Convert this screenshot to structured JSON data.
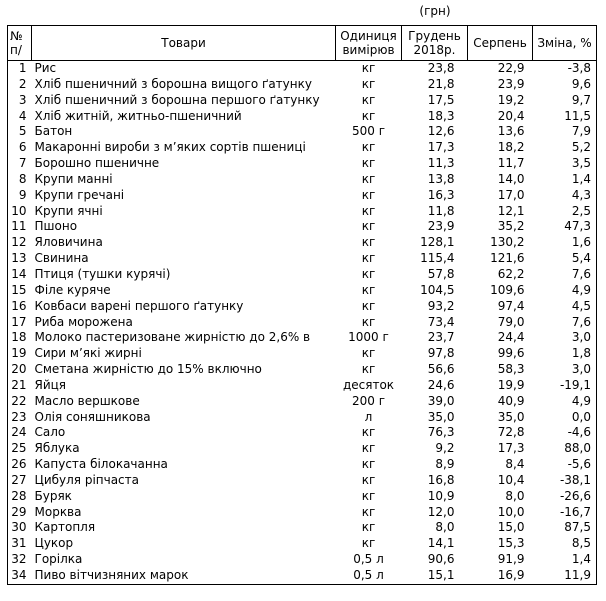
{
  "currency_note": "(грн)",
  "colors": {
    "text": "#000000",
    "border": "#000000",
    "background": "#ffffff"
  },
  "table": {
    "header": {
      "num_lines": [
        "№",
        "п/"
      ],
      "goods": "Товари",
      "unit_lines": [
        "Одиниця",
        "вимірюв"
      ],
      "dec_lines": [
        "Грудень",
        "2018р."
      ],
      "august": "Серпень",
      "change": "Зміна, %"
    },
    "rows": [
      {
        "num": "1",
        "name": "Рис",
        "unit": "кг",
        "dec": "23,8",
        "aug": "22,9",
        "change": "-3,8"
      },
      {
        "num": "2",
        "name": "Хліб пшеничний з борошна вищого ґатунку",
        "unit": "кг",
        "dec": "21,8",
        "aug": "23,9",
        "change": "9,6"
      },
      {
        "num": "3",
        "name": "Хліб пшеничний з борошна першого ґатунку",
        "unit": "кг",
        "dec": "17,5",
        "aug": "19,2",
        "change": "9,7"
      },
      {
        "num": "4",
        "name": "Хліб житній, житньо-пшеничний",
        "unit": "кг",
        "dec": "18,3",
        "aug": "20,4",
        "change": "11,5"
      },
      {
        "num": "5",
        "name": "Батон",
        "unit": "500 г",
        "dec": "12,6",
        "aug": "13,6",
        "change": "7,9"
      },
      {
        "num": "6",
        "name": "Макаронні вироби з м’яких сортів пшениці",
        "unit": "кг",
        "dec": "17,3",
        "aug": "18,2",
        "change": "5,2"
      },
      {
        "num": "7",
        "name": "Борошно пшеничне",
        "unit": "кг",
        "dec": "11,3",
        "aug": "11,7",
        "change": "3,5"
      },
      {
        "num": "8",
        "name": "Крупи манні",
        "unit": "кг",
        "dec": "13,8",
        "aug": "14,0",
        "change": "1,4"
      },
      {
        "num": "9",
        "name": "Крупи гречані",
        "unit": "кг",
        "dec": "16,3",
        "aug": "17,0",
        "change": "4,3"
      },
      {
        "num": "10",
        "name": "Крупи ячні",
        "unit": "кг",
        "dec": "11,8",
        "aug": "12,1",
        "change": "2,5"
      },
      {
        "num": "11",
        "name": "Пшоно",
        "unit": "кг",
        "dec": "23,9",
        "aug": "35,2",
        "change": "47,3"
      },
      {
        "num": "12",
        "name": "Яловичина",
        "unit": "кг",
        "dec": "128,1",
        "aug": "130,2",
        "change": "1,6"
      },
      {
        "num": "13",
        "name": "Свинина",
        "unit": "кг",
        "dec": "115,4",
        "aug": "121,6",
        "change": "5,4"
      },
      {
        "num": "14",
        "name": "Птиця (тушки курячі)",
        "unit": "кг",
        "dec": "57,8",
        "aug": "62,2",
        "change": "7,6"
      },
      {
        "num": "15",
        "name": "Філе куряче",
        "unit": "кг",
        "dec": "104,5",
        "aug": "109,6",
        "change": "4,9"
      },
      {
        "num": "16",
        "name": "Ковбаси варені першого ґатунку",
        "unit": "кг",
        "dec": "93,2",
        "aug": "97,4",
        "change": "4,5"
      },
      {
        "num": "17",
        "name": "Риба морожена",
        "unit": "кг",
        "dec": "73,4",
        "aug": "79,0",
        "change": "7,6"
      },
      {
        "num": "18",
        "name": "Молоко пастеризоване жирністю до 2,6% в",
        "unit": "1000 г",
        "dec": "23,7",
        "aug": "24,4",
        "change": "3,0"
      },
      {
        "num": "19",
        "name": "Сири м’які жирні",
        "unit": "кг",
        "dec": "97,8",
        "aug": "99,6",
        "change": "1,8"
      },
      {
        "num": "20",
        "name": "Сметана жирністю до 15% включно",
        "unit": "кг",
        "dec": "56,6",
        "aug": "58,3",
        "change": "3,0"
      },
      {
        "num": "21",
        "name": "Яйця",
        "unit": "десяток",
        "dec": "24,6",
        "aug": "19,9",
        "change": "-19,1"
      },
      {
        "num": "22",
        "name": "Масло вершкове",
        "unit": "200 г",
        "dec": "39,0",
        "aug": "40,9",
        "change": "4,9"
      },
      {
        "num": "23",
        "name": "Олія соняшникова",
        "unit": "л",
        "dec": "35,0",
        "aug": "35,0",
        "change": "0,0"
      },
      {
        "num": "24",
        "name": "Сало",
        "unit": "кг",
        "dec": "76,3",
        "aug": "72,8",
        "change": "-4,6"
      },
      {
        "num": "25",
        "name": "Яблука",
        "unit": "кг",
        "dec": "9,2",
        "aug": "17,3",
        "change": "88,0"
      },
      {
        "num": "26",
        "name": "Капуста білокачанна",
        "unit": "кг",
        "dec": "8,9",
        "aug": "8,4",
        "change": "-5,6"
      },
      {
        "num": "27",
        "name": "Цибуля ріпчаста",
        "unit": "кг",
        "dec": "16,8",
        "aug": "10,4",
        "change": "-38,1"
      },
      {
        "num": "28",
        "name": "Буряк",
        "unit": "кг",
        "dec": "10,9",
        "aug": "8,0",
        "change": "-26,6"
      },
      {
        "num": "29",
        "name": "Морква",
        "unit": "кг",
        "dec": "12,0",
        "aug": "10,0",
        "change": "-16,7"
      },
      {
        "num": "30",
        "name": "Картопля",
        "unit": "кг",
        "dec": "8,0",
        "aug": "15,0",
        "change": "87,5"
      },
      {
        "num": "31",
        "name": "Цукор",
        "unit": "кг",
        "dec": "14,1",
        "aug": "15,3",
        "change": "8,5"
      },
      {
        "num": "32",
        "name": "Горілка",
        "unit": "0,5 л",
        "dec": "90,6",
        "aug": "91,9",
        "change": "1,4"
      },
      {
        "num": "34",
        "name": "Пиво вітчизняних марок",
        "unit": "0,5 л",
        "dec": "15,1",
        "aug": "16,9",
        "change": "11,9"
      }
    ]
  }
}
